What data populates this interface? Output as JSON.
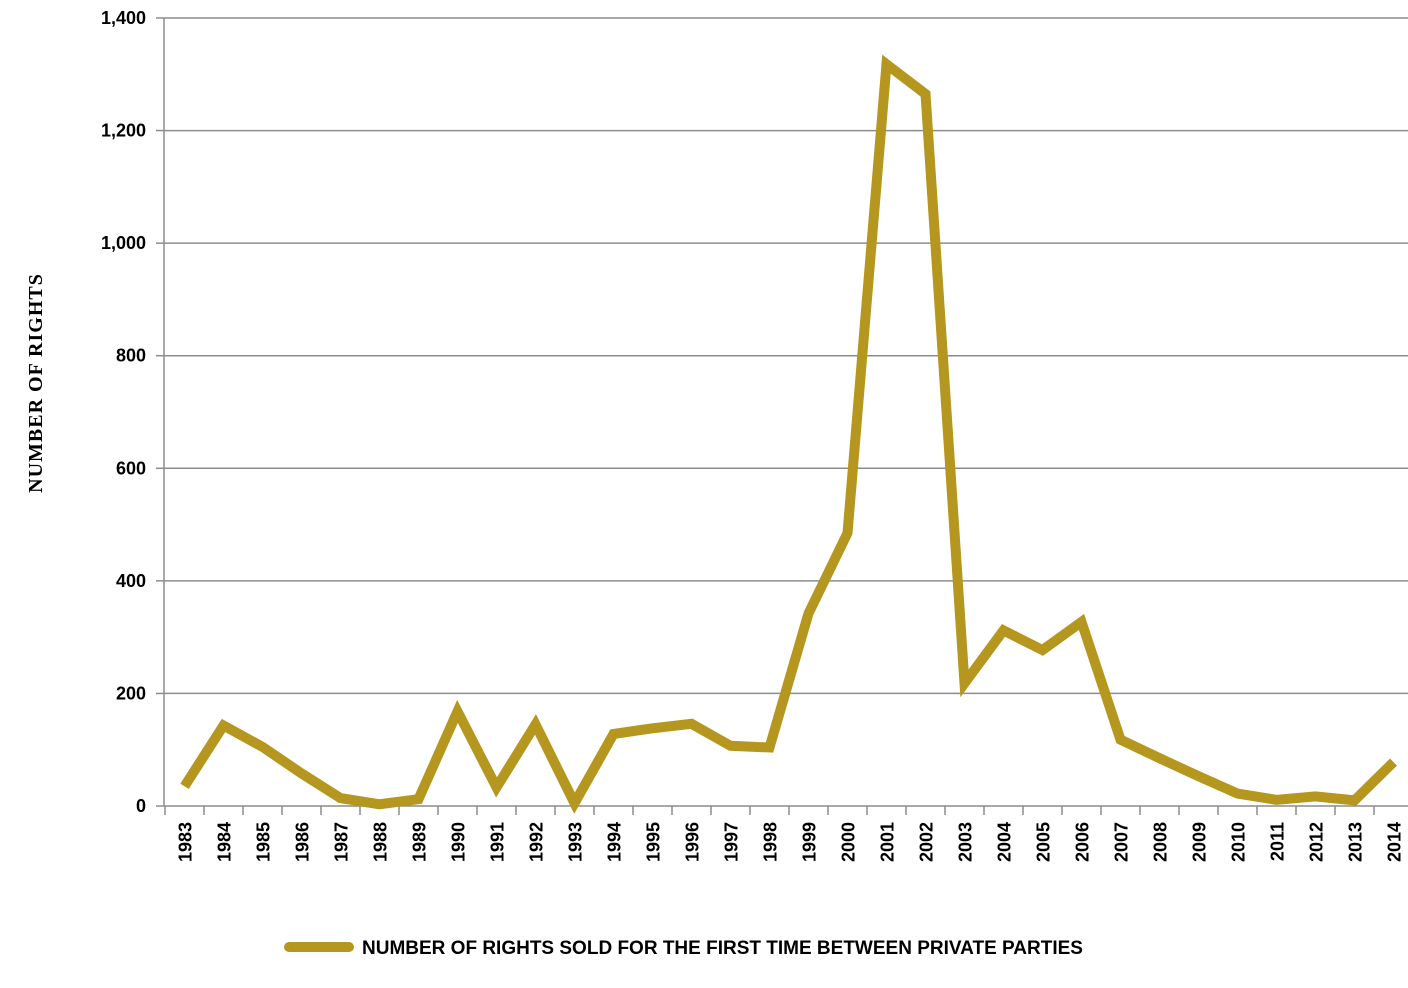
{
  "chart_data": {
    "type": "line",
    "title": "",
    "xlabel": "",
    "ylabel": "NUMBER OF RIGHTS",
    "ylim": [
      0,
      1400
    ],
    "yticks": [
      0,
      200,
      400,
      600,
      800,
      1000,
      1200,
      1400
    ],
    "ytick_labels": [
      "0",
      "200",
      "400",
      "600",
      "800",
      "1,000",
      "1,200",
      "1,400"
    ],
    "grid": true,
    "legend_position": "bottom",
    "categories": [
      "1983",
      "1984",
      "1985",
      "1986",
      "1987",
      "1988",
      "1989",
      "1990",
      "1991",
      "1992",
      "1993",
      "1994",
      "1995",
      "1996",
      "1997",
      "1998",
      "1999",
      "2000",
      "2001",
      "2002",
      "2003",
      "2004",
      "2005",
      "2006",
      "2007",
      "2008",
      "2009",
      "2010",
      "2011",
      "2012",
      "2013",
      "2014"
    ],
    "series": [
      {
        "name": "NUMBER OF RIGHTS SOLD FOR THE FIRST TIME BETWEEN PRIVATE PARTIES",
        "color": "#B5961E",
        "values": [
          35,
          143,
          105,
          58,
          14,
          3,
          12,
          168,
          33,
          145,
          5,
          128,
          138,
          146,
          107,
          104,
          342,
          485,
          1318,
          1265,
          218,
          312,
          277,
          327,
          118,
          85,
          53,
          22,
          11,
          17,
          10,
          78
        ]
      }
    ]
  }
}
